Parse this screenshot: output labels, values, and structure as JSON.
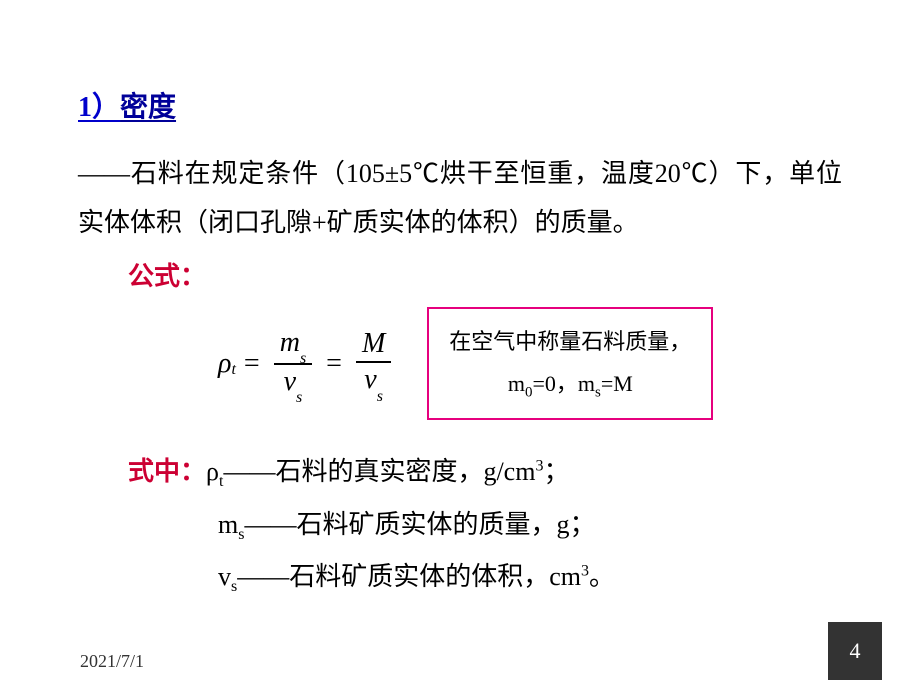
{
  "heading": {
    "number": "1）",
    "title": "密度",
    "colors": {
      "number": "#0000cc",
      "title": "#000099"
    }
  },
  "description": "——石料在规定条件（105±5℃烘干至恒重，温度20℃）下，单位实体体积（闭口孔隙+矿质实体的体积）的质量。",
  "formula_label": "公式：",
  "formula": {
    "lhs_symbol": "ρ",
    "lhs_sub": "t",
    "eq1": "=",
    "frac1": {
      "top_sym": "m",
      "top_sub": "s",
      "bot_sym": "v",
      "bot_sub": "s"
    },
    "eq2": "=",
    "frac2": {
      "top_sym": "M",
      "bot_sym": "v",
      "bot_sub": "s"
    }
  },
  "note": {
    "line1": "在空气中称量石料质量，",
    "m0_sym": "m",
    "m0_sub": "0",
    "eq": "=0，",
    "ms_sym": "m",
    "ms_sub": "s",
    "rhs": "=M",
    "border_color": "#e6007e"
  },
  "where_label": "式中：",
  "definitions": [
    {
      "sym": "ρ",
      "sub": "t",
      "text": "——石料的真实密度，g/cm",
      "sup": "3",
      "tail": "；"
    },
    {
      "sym": "m",
      "sub": "s",
      "text": "——石料矿质实体的质量，g；",
      "sup": "",
      "tail": ""
    },
    {
      "sym": "v",
      "sub": "s",
      "text": "——石料矿质实体的体积，cm",
      "sup": "3",
      "tail": "。"
    }
  ],
  "footer": {
    "date": "2021/7/1",
    "page": "4",
    "page_bg": "#333333"
  },
  "styles": {
    "label_color": "#cc0033",
    "body_fontsize": 26,
    "heading_fontsize": 28
  }
}
